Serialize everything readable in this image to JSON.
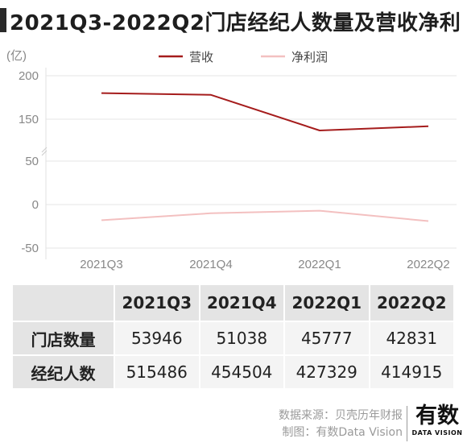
{
  "title": "2021Q3-2022Q2门店经纪人数量及营收净利",
  "chart_data": {
    "type": "line",
    "unit": "(亿)",
    "categories": [
      "2021Q3",
      "2021Q4",
      "2022Q1",
      "2022Q2"
    ],
    "series": [
      {
        "name": "营收",
        "values": [
          180,
          178,
          123,
          133
        ],
        "color": "#a51c1c"
      },
      {
        "name": "净利润",
        "values": [
          -18,
          -10,
          -7,
          -19
        ],
        "color": "#f3c0c0"
      }
    ],
    "yticks": [
      200,
      150,
      50,
      0,
      -50
    ],
    "ylim": [
      -50,
      200
    ],
    "axis_break": "between 50 and 150",
    "grid": true,
    "legend": "top-center"
  },
  "table": {
    "headers": [
      "2021Q3",
      "2021Q4",
      "2022Q1",
      "2022Q2"
    ],
    "rows": [
      {
        "label": "门店数量",
        "values": [
          "53946",
          "51038",
          "45777",
          "42831"
        ]
      },
      {
        "label": "经纪人数",
        "values": [
          "515486",
          "454504",
          "427329",
          "414915"
        ]
      }
    ]
  },
  "footer": {
    "source": "数据来源：贝壳历年财报",
    "credit": "制图：有数Data Vision"
  },
  "logo": {
    "main": "有数",
    "sub": "DATA VISION"
  }
}
